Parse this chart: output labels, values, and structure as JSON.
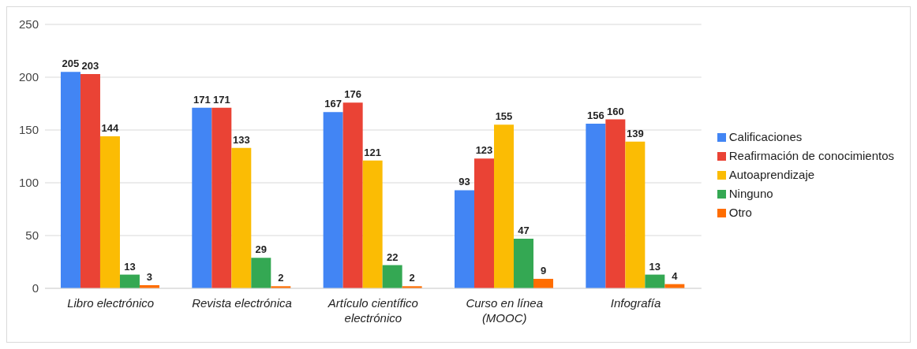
{
  "chart_data": {
    "type": "bar",
    "categories": [
      "Libro electrónico",
      "Revista electrónica",
      "Artículo científico electrónico",
      "Curso en línea (MOOC)",
      "Infografía"
    ],
    "series": [
      {
        "name": "Calificaciones",
        "color": "#4285f4",
        "values": [
          205,
          171,
          167,
          93,
          156
        ]
      },
      {
        "name": "Reafirmación de conocimientos",
        "color": "#ea4335",
        "values": [
          203,
          171,
          176,
          123,
          160
        ]
      },
      {
        "name": "Autoaprendizaje",
        "color": "#fbbc04",
        "values": [
          144,
          133,
          121,
          155,
          139
        ]
      },
      {
        "name": "Ninguno",
        "color": "#34a853",
        "values": [
          13,
          29,
          22,
          47,
          13
        ]
      },
      {
        "name": "Otro",
        "color": "#ff6d01",
        "values": [
          3,
          2,
          2,
          9,
          4
        ]
      }
    ],
    "ylim": [
      0,
      250
    ],
    "yticks": [
      0,
      50,
      100,
      150,
      200,
      250
    ],
    "grid": "y",
    "legend": "right",
    "data_labels": true
  }
}
